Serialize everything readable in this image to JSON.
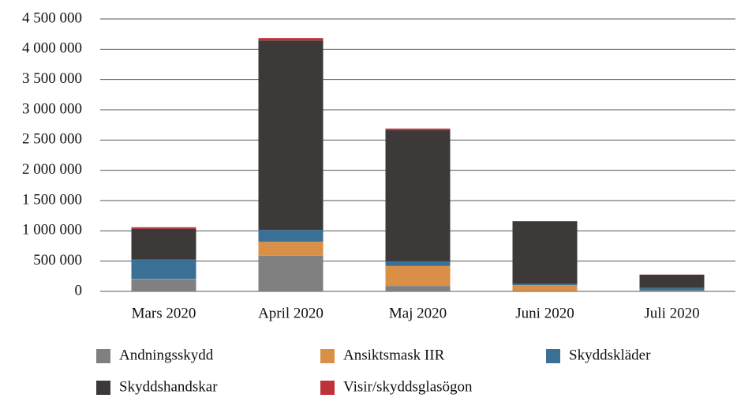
{
  "chart_data": {
    "type": "stacked-bar",
    "categories": [
      "Mars 2020",
      "April 2020",
      "Maj 2020",
      "Juni 2020",
      "Juli 2020"
    ],
    "series": [
      {
        "name": "Andningsskydd",
        "color": "#808080",
        "values": [
          200000,
          590000,
          90000,
          5000,
          5000
        ]
      },
      {
        "name": "Ansiktsmask IIR",
        "color": "#d98f46",
        "values": [
          5000,
          230000,
          330000,
          100000,
          10000
        ]
      },
      {
        "name": "Skyddskläder",
        "color": "#3a7095",
        "values": [
          320000,
          195000,
          80000,
          20000,
          50000
        ]
      },
      {
        "name": "Skyddshandskar",
        "color": "#3d3939",
        "values": [
          510000,
          3130000,
          2165000,
          1030000,
          210000
        ]
      },
      {
        "name": "Visir/skyddsglasögon",
        "color": "#c0323a",
        "values": [
          25000,
          40000,
          25000,
          5000,
          3000
        ]
      }
    ],
    "ylim": [
      0,
      4500000
    ],
    "yticks": [
      0,
      {
        "value": 500000,
        "label": "500 000"
      },
      {
        "value": 1000000,
        "label": "1 000 000"
      },
      {
        "value": 1500000,
        "label": "1 500 000"
      },
      {
        "value": 2000000,
        "label": "2 000 000"
      },
      {
        "value": 2500000,
        "label": "2 500 000"
      },
      {
        "value": 3000000,
        "label": "3 000 000"
      },
      {
        "value": 3500000,
        "label": "3 500 000"
      },
      {
        "value": 4000000,
        "label": "4 000 000"
      },
      {
        "value": 4500000,
        "label": "4 500 000"
      }
    ],
    "grid": true
  }
}
